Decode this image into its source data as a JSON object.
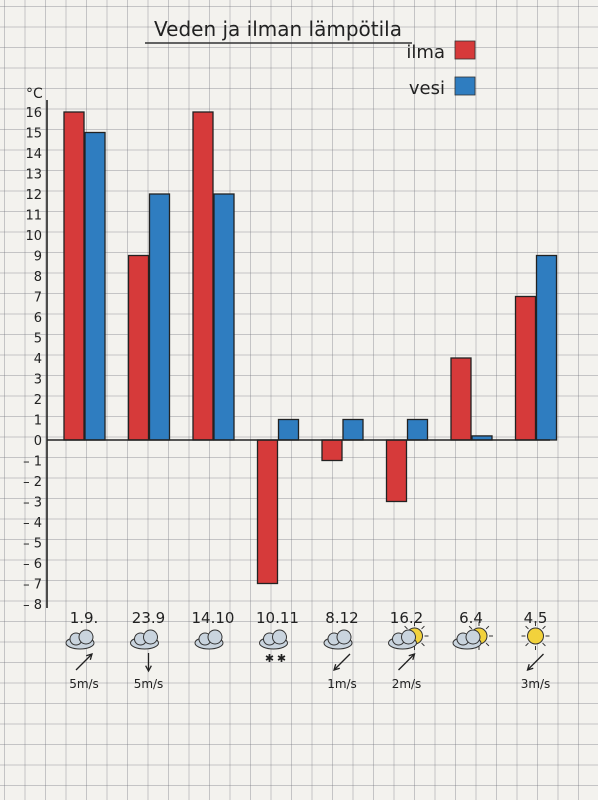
{
  "chart_data": {
    "type": "bar",
    "title": "Veden ja ilman lämpötila",
    "ylabel": "°C",
    "ylim": [
      -8,
      16
    ],
    "yticks": [
      "16",
      "15",
      "14",
      "13",
      "12",
      "11",
      "10",
      "9",
      "8",
      "7",
      "6",
      "5",
      "4",
      "3",
      "2",
      "1",
      "0",
      "– 1",
      "– 2",
      "– 3",
      "– 4",
      "– 5",
      "– 6",
      "– 7",
      "– 8"
    ],
    "categories": [
      "1.9.",
      "23.9",
      "14.10",
      "10.11",
      "8.12",
      "16.2",
      "6.4",
      "4.5"
    ],
    "series": [
      {
        "name": "ilma",
        "color": "#d63a3a",
        "values": [
          16,
          9,
          16,
          -7,
          -1,
          -3,
          4,
          7
        ]
      },
      {
        "name": "vesi",
        "color": "#2f7dc0",
        "values": [
          15,
          12,
          12,
          1,
          1,
          1,
          0.2,
          9
        ]
      }
    ],
    "legend_position": "top-right",
    "weather": [
      {
        "icon": "cloud-icon",
        "wind": "5m/s",
        "arrow": "up-right"
      },
      {
        "icon": "cloud-icon",
        "wind": "5m/s",
        "arrow": "down"
      },
      {
        "icon": "cloud-icon",
        "wind": "",
        "arrow": ""
      },
      {
        "icon": "snow-cloud-icon",
        "wind": "",
        "arrow": ""
      },
      {
        "icon": "cloud-icon",
        "wind": "1m/s",
        "arrow": "down-left"
      },
      {
        "icon": "sun-cloud-icon",
        "wind": "2m/s",
        "arrow": "up-right"
      },
      {
        "icon": "sun-cloud-icon",
        "wind": "",
        "arrow": ""
      },
      {
        "icon": "sun-icon",
        "wind": "3m/s",
        "arrow": "down-left"
      }
    ]
  }
}
